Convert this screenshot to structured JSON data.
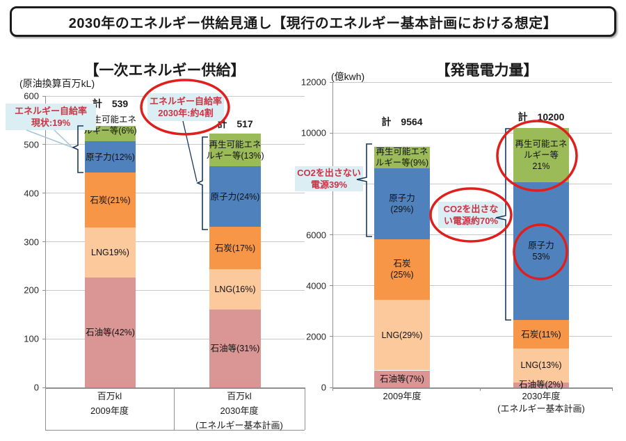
{
  "page_title": "2030年のエネルギー供給見通し【現行のエネルギー基本計画における想定】",
  "colors": {
    "renewable": "#9BBB59",
    "nuclear": "#4F81BD",
    "coal": "#F79646",
    "lng": "#FBC99C",
    "oil": "#D99694",
    "grid": "#C9C9C9",
    "axis": "#8F8F8F",
    "bracket": "#17375D",
    "leader": "#A6C5DA",
    "callout_bg": "#DAEEF3",
    "callout_text": "#CC3344",
    "circle": "#E01E1C"
  },
  "chart_data": [
    {
      "type": "bar",
      "stacked": true,
      "title": "【一次エネルギー供給】",
      "unit_label": "(原油換算百万kL)",
      "ylim": [
        0,
        600
      ],
      "ytick_step": 100,
      "grid": true,
      "bars": [
        {
          "category_lines": [
            "百万kl",
            "2009年度"
          ],
          "total": 539,
          "total_label": "計　539",
          "segments": [
            {
              "key": "renewable",
              "name": "再生可能エネルギー等",
              "pct": 6,
              "value": 32,
              "label_lines": [
                "再生可能エネ",
                "ルギー等(6%)"
              ],
              "label_dy": -12
            },
            {
              "key": "nuclear",
              "name": "原子力",
              "pct": 12,
              "value": 65,
              "label_lines": [
                "原子力(12%)"
              ]
            },
            {
              "key": "coal",
              "name": "石炭",
              "pct": 21,
              "value": 113,
              "label_lines": [
                "石炭(21%)"
              ]
            },
            {
              "key": "lng",
              "name": "LNG",
              "pct": 19,
              "value": 102,
              "label_lines": [
                "LNG19%)"
              ]
            },
            {
              "key": "oil",
              "name": "石油等",
              "pct": 42,
              "value": 226,
              "label_lines": [
                "石油等(42%)"
              ]
            }
          ]
        },
        {
          "category_lines": [
            "百万kl",
            "2030年度",
            "(エネルギー基本計画)"
          ],
          "total": 517,
          "total_label": "計　517",
          "segments": [
            {
              "key": "renewable",
              "name": "再生可能エネルギー等",
              "pct": 13,
              "value": 67,
              "label_lines": [
                "再生可能エネ",
                "ルギー等(13%)"
              ]
            },
            {
              "key": "nuclear",
              "name": "原子力",
              "pct": 24,
              "value": 124,
              "label_lines": [
                "原子力(24%)"
              ]
            },
            {
              "key": "coal",
              "name": "石炭",
              "pct": 17,
              "value": 88,
              "label_lines": [
                "石炭(17%)"
              ]
            },
            {
              "key": "lng",
              "name": "LNG",
              "pct": 16,
              "value": 83,
              "label_lines": [
                "LNG(16%)"
              ]
            },
            {
              "key": "oil",
              "name": "石油等",
              "pct": 31,
              "value": 160,
              "label_lines": [
                "石油等(31%)"
              ]
            }
          ]
        }
      ]
    },
    {
      "type": "bar",
      "stacked": true,
      "title": "【発電電力量】",
      "unit_label": "(億kwh)",
      "ylim": [
        0,
        12000
      ],
      "ytick_step": 2000,
      "grid": true,
      "bars": [
        {
          "category_lines": [
            "2009年度"
          ],
          "total": 9564,
          "total_label": "計　9564",
          "segments": [
            {
              "key": "renewable",
              "name": "再生可能エネルギー等",
              "pct": 9,
              "value": 861,
              "label_lines": [
                "再生可能エネ",
                "ルギー等(9%)"
              ]
            },
            {
              "key": "nuclear",
              "name": "原子力",
              "pct": 29,
              "value": 2774,
              "label_lines": [
                "原子力",
                "(29%)"
              ]
            },
            {
              "key": "coal",
              "name": "石炭",
              "pct": 25,
              "value": 2391,
              "label_lines": [
                "石炭",
                "(25%)"
              ]
            },
            {
              "key": "lng",
              "name": "LNG",
              "pct": 29,
              "value": 2774,
              "label_lines": [
                "LNG(29%)"
              ]
            },
            {
              "key": "oil",
              "name": "石油等",
              "pct": 7,
              "value": 669,
              "label_lines": [
                "石油等(7%)"
              ]
            }
          ]
        },
        {
          "category_lines": [
            "2030年度",
            "(エネルギー基本計画)"
          ],
          "total": 10200,
          "total_label": "計　10200",
          "segments": [
            {
              "key": "renewable",
              "name": "再生可能エネルギー等",
              "pct": 21,
              "value": 2142,
              "label_lines": [
                "再生可能エネ",
                "ルギー等",
                "21%"
              ]
            },
            {
              "key": "nuclear",
              "name": "原子力",
              "pct": 53,
              "value": 5406,
              "label_lines": [
                "原子力",
                "53%"
              ]
            },
            {
              "key": "coal",
              "name": "石炭",
              "pct": 11,
              "value": 1122,
              "label_lines": [
                "石炭(11%)"
              ]
            },
            {
              "key": "lng",
              "name": "LNG",
              "pct": 13,
              "value": 1326,
              "label_lines": [
                "LNG(13%)"
              ]
            },
            {
              "key": "oil",
              "name": "石油等",
              "pct": 2,
              "value": 204,
              "label_lines": [
                "石油等(2%)"
              ]
            }
          ]
        }
      ]
    }
  ],
  "annotations": {
    "self_sufficiency_now": {
      "lines": [
        "エネルギー自給率",
        "現状:19%"
      ]
    },
    "self_sufficiency_2030": {
      "lines": [
        "エネルギー自給率",
        "2030年:約4割"
      ]
    },
    "co2_free_39": {
      "lines": [
        "CO2を出さない",
        "電源39%"
      ]
    },
    "co2_free_70": {
      "lines": [
        "CO2を出さな",
        "い電源約70%"
      ]
    }
  }
}
